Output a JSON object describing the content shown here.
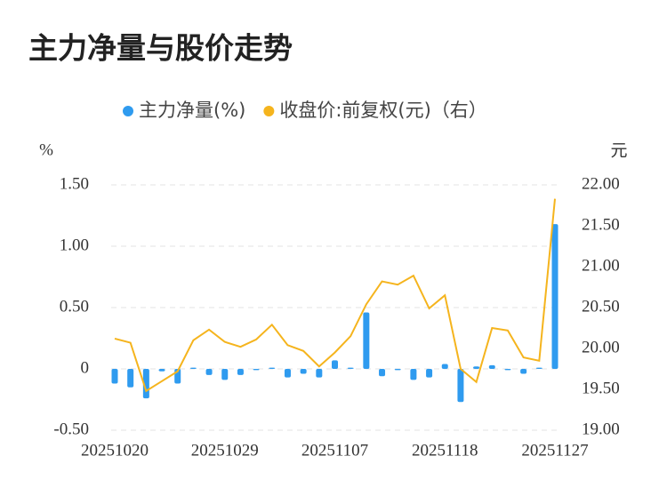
{
  "chart_data": {
    "type": "bar-line",
    "title": "主力净量与股价走势",
    "y_label": "%",
    "y2_label": "元",
    "categories": [
      "20251020",
      null,
      null,
      null,
      null,
      null,
      null,
      "20251029",
      null,
      null,
      null,
      null,
      null,
      null,
      "20251107",
      null,
      null,
      null,
      null,
      null,
      null,
      "20251118",
      null,
      null,
      null,
      null,
      null,
      null,
      "20251127"
    ],
    "series": [
      {
        "name": "主力净量(%)",
        "kind": "bar",
        "color": "#2f9bef",
        "values": [
          -0.12,
          -0.15,
          -0.24,
          -0.02,
          -0.12,
          0.01,
          -0.05,
          -0.09,
          -0.05,
          -0.01,
          0.01,
          -0.07,
          -0.04,
          -0.07,
          0.07,
          0.01,
          0.46,
          -0.06,
          -0.01,
          -0.09,
          -0.07,
          0.04,
          -0.27,
          0.02,
          0.03,
          -0.01,
          -0.04,
          0.01,
          1.18
        ]
      },
      {
        "name": "收盘价:前复权(元)（右）",
        "kind": "line",
        "axis": "y2",
        "color": "#f5b41d",
        "values": [
          20.12,
          20.07,
          19.48,
          19.6,
          19.72,
          20.1,
          20.23,
          20.08,
          20.02,
          20.11,
          20.29,
          20.04,
          19.97,
          19.78,
          19.95,
          20.15,
          20.54,
          20.82,
          20.78,
          20.89,
          20.49,
          20.65,
          19.75,
          19.59,
          20.25,
          20.22,
          19.89,
          19.85,
          21.83
        ]
      }
    ],
    "ylim": [
      -0.5,
      1.5
    ],
    "yticks": [
      {
        "value": 1.5,
        "label": "1.50"
      },
      {
        "value": 1,
        "label": "1.00"
      },
      {
        "value": 0.5,
        "label": "0.50"
      },
      0,
      {
        "value": -0.5,
        "label": "-0.50"
      }
    ],
    "y2lim": [
      19,
      22
    ],
    "y2ticks": [
      {
        "value": 22,
        "label": "22.00"
      },
      {
        "value": 21.5,
        "label": "21.50"
      },
      {
        "value": 21,
        "label": "21.00"
      },
      {
        "value": 20.5,
        "label": "20.50"
      },
      {
        "value": 20,
        "label": "20.00"
      },
      {
        "value": 19.5,
        "label": "19.50"
      },
      {
        "value": 19,
        "label": "19.00"
      }
    ],
    "grid": true
  }
}
